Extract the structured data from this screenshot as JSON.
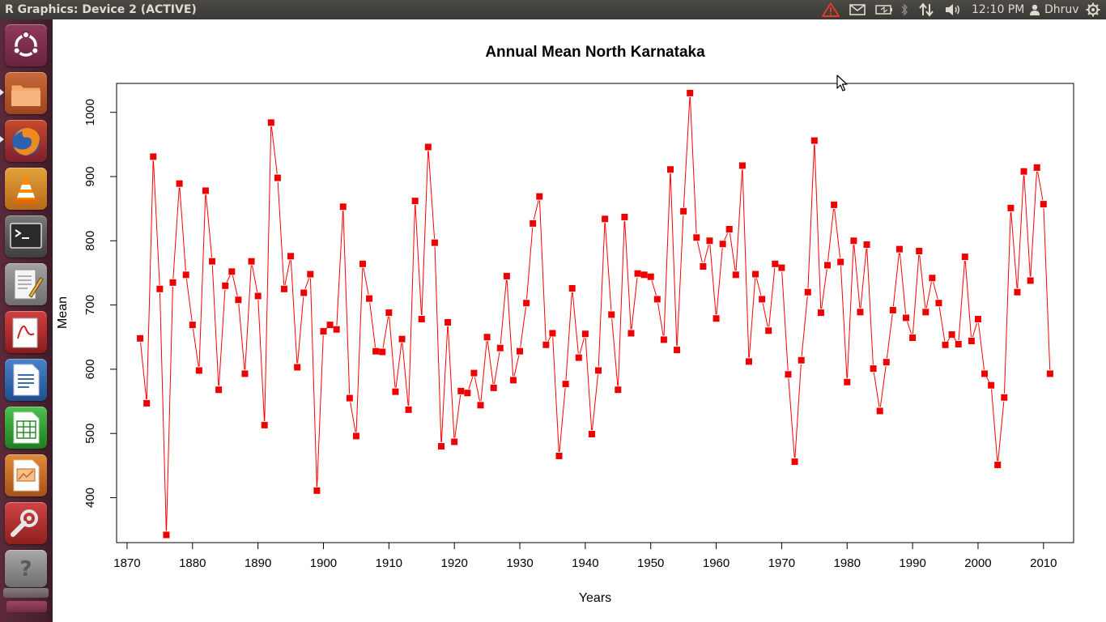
{
  "window": {
    "title": "R Graphics: Device 2 (ACTIVE)"
  },
  "top_panel": {
    "clock": "12:10 PM",
    "user": "Dhruv",
    "indicators": [
      "warning-icon",
      "mail-icon",
      "battery-icon",
      "bluetooth-icon",
      "network-icon",
      "volume-icon",
      "user-icon",
      "gear-icon"
    ]
  },
  "launcher": {
    "items": [
      "ubuntu-dash-icon",
      "files-icon",
      "firefox-icon",
      "vlc-icon",
      "terminal-icon",
      "text-editor-icon",
      "document-viewer-icon",
      "writer-icon",
      "calc-icon",
      "impress-icon",
      "system-settings-icon",
      "help-icon"
    ]
  },
  "chart_data": {
    "type": "line",
    "title": "Annual Mean North Karnataka",
    "xlabel": "Years",
    "ylabel": "Mean",
    "x_ticks": [
      1870,
      1880,
      1890,
      1900,
      1910,
      1920,
      1930,
      1940,
      1950,
      1960,
      1970,
      1980,
      1990,
      2000,
      2010
    ],
    "y_ticks": [
      400,
      500,
      600,
      700,
      800,
      900,
      1000
    ],
    "xlim": [
      1868.4,
      11014.6
    ],
    "ylim": [
      330,
      1045
    ],
    "line_color": "#ff0000",
    "marker_color": "#ee0000",
    "grid": false,
    "x": [
      1872,
      1873,
      1874,
      1875,
      1876,
      1877,
      1878,
      1879,
      1880,
      1881,
      1882,
      1883,
      1884,
      1885,
      1886,
      1887,
      1888,
      1889,
      1890,
      1891,
      1892,
      1893,
      1894,
      1895,
      1896,
      1897,
      1898,
      1899,
      1900,
      1901,
      1902,
      1903,
      1904,
      1905,
      1906,
      1907,
      1908,
      1909,
      1910,
      1911,
      1912,
      1913,
      1914,
      1915,
      1916,
      1917,
      1918,
      1919,
      1920,
      1921,
      1922,
      1923,
      1924,
      1925,
      1926,
      1927,
      1928,
      1929,
      1930,
      1931,
      1932,
      1933,
      1934,
      1935,
      1936,
      1937,
      1938,
      1939,
      1940,
      1941,
      1942,
      1943,
      1944,
      1945,
      1946,
      1947,
      1948,
      1949,
      1950,
      1951,
      1952,
      1953,
      1954,
      1955,
      1956,
      1957,
      1958,
      1959,
      1960,
      1961,
      1962,
      1963,
      1964,
      1965,
      1966,
      1967,
      1968,
      1969,
      1970,
      1971,
      1972,
      1973,
      1974,
      1975,
      1976,
      1977,
      1978,
      1979,
      1980,
      1981,
      1982,
      1983,
      1984,
      1985,
      1986,
      1987,
      1988,
      1989,
      1990,
      1991,
      1992,
      1993,
      1994,
      1995,
      1996,
      1997,
      1998,
      1999,
      2000,
      2001,
      2002,
      2003,
      2004,
      2005,
      2006,
      2007,
      2008,
      2009,
      2010,
      2011
    ],
    "values": [
      648,
      547,
      931,
      725,
      342,
      735,
      889,
      747,
      669,
      598,
      878,
      768,
      568,
      730,
      752,
      708,
      593,
      768,
      714,
      513,
      984,
      898,
      725,
      776,
      603,
      719,
      748,
      411,
      659,
      669,
      662,
      853,
      555,
      496,
      764,
      710,
      628,
      627,
      688,
      565,
      647,
      537,
      862,
      678,
      946,
      797,
      480,
      673,
      487,
      566,
      563,
      594,
      544,
      650,
      571,
      633,
      745,
      583,
      628,
      703,
      827,
      869,
      638,
      656,
      465,
      577,
      726,
      618,
      655,
      499,
      598,
      834,
      685,
      568,
      837,
      656,
      749,
      747,
      744,
      709,
      646,
      911,
      630,
      846,
      1030,
      805,
      760,
      800,
      679,
      795,
      818,
      747,
      917,
      612,
      748,
      709,
      660,
      764,
      758,
      592,
      456,
      614,
      720,
      956,
      688,
      762,
      856,
      767,
      580,
      800,
      689,
      794,
      601,
      535,
      611,
      692,
      787,
      680,
      649,
      784,
      689,
      742,
      703,
      638,
      654,
      639,
      775,
      644,
      678,
      593,
      575,
      451,
      556,
      851,
      720,
      908,
      738,
      914,
      857,
      593
    ]
  }
}
